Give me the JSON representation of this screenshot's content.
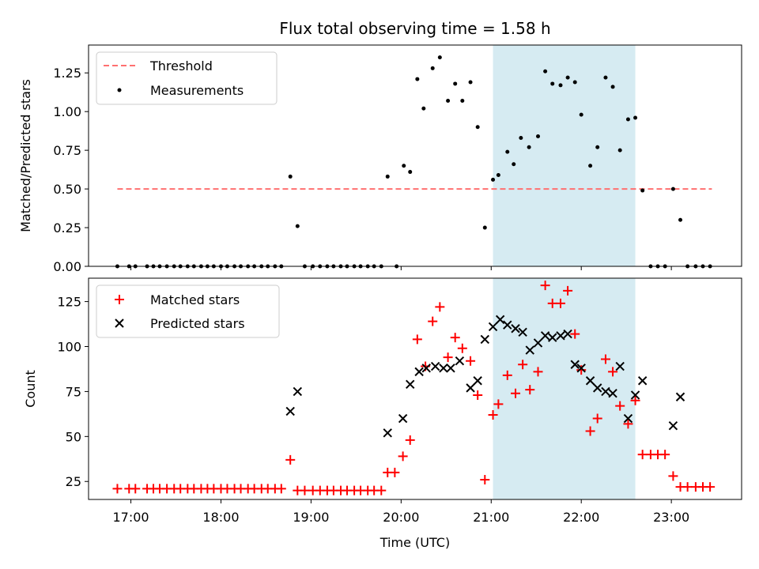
{
  "chart_data": [
    {
      "type": "scatter",
      "panel": "top",
      "title": "Flux total observing time = 1.58 h",
      "xlabel": "",
      "ylabel": "Matched/Predicted stars",
      "xlim": [
        16.53,
        23.78
      ],
      "ylim": [
        0.0,
        1.43
      ],
      "xticks": [
        17,
        18,
        19,
        20,
        21,
        22,
        23
      ],
      "yticks": [
        0.0,
        0.25,
        0.5,
        0.75,
        1.0,
        1.25
      ],
      "ytick_labels": [
        "0.00",
        "0.25",
        "0.50",
        "0.75",
        "1.00",
        "1.25"
      ],
      "shaded_span": [
        21.02,
        22.6
      ],
      "shaded_color": "#add8e6",
      "legend": {
        "position": "top-left",
        "entries": [
          {
            "label": "Threshold",
            "style": "dashed-line",
            "color": "#ff7070"
          },
          {
            "label": "Measurements",
            "style": "dot",
            "color": "#000000"
          }
        ]
      },
      "series": [
        {
          "name": "Threshold",
          "kind": "line",
          "color": "#ff7070",
          "x": [
            16.85,
            23.45
          ],
          "y": [
            0.5,
            0.5
          ]
        },
        {
          "name": "Measurements",
          "kind": "scatter",
          "color": "#000000",
          "x": [
            16.85,
            16.98,
            17.05,
            17.18,
            17.25,
            17.32,
            17.4,
            17.48,
            17.55,
            17.63,
            17.7,
            17.78,
            17.85,
            17.92,
            18.0,
            18.07,
            18.15,
            18.22,
            18.3,
            18.37,
            18.45,
            18.52,
            18.6,
            18.67,
            18.77,
            18.85,
            18.93,
            19.02,
            19.1,
            19.18,
            19.25,
            19.33,
            19.4,
            19.48,
            19.55,
            19.63,
            19.7,
            19.78,
            19.85,
            19.95,
            20.03,
            20.1,
            20.18,
            20.25,
            20.35,
            20.43,
            20.52,
            20.6,
            20.68,
            20.77,
            20.85,
            20.93,
            21.02,
            21.08,
            21.18,
            21.25,
            21.33,
            21.42,
            21.52,
            21.6,
            21.68,
            21.77,
            21.85,
            21.93,
            22.0,
            22.1,
            22.18,
            22.27,
            22.35,
            22.43,
            22.52,
            22.6,
            22.68,
            22.77,
            22.85,
            22.93,
            23.02,
            23.1,
            23.18,
            23.27,
            23.35,
            23.43
          ],
          "y": [
            0,
            0,
            0,
            0,
            0,
            0,
            0,
            0,
            0,
            0,
            0,
            0,
            0,
            0,
            0,
            0,
            0,
            0,
            0,
            0,
            0,
            0,
            0,
            0,
            0.58,
            0.26,
            0,
            0,
            0,
            0,
            0,
            0,
            0,
            0,
            0,
            0,
            0,
            0,
            0.58,
            0,
            0.65,
            0.61,
            1.21,
            1.02,
            1.28,
            1.35,
            1.07,
            1.18,
            1.07,
            1.19,
            0.9,
            0.25,
            0.56,
            0.59,
            0.74,
            0.66,
            0.83,
            0.77,
            0.84,
            1.26,
            1.18,
            1.17,
            1.22,
            1.19,
            0.98,
            0.65,
            0.77,
            1.22,
            1.16,
            0.75,
            0.95,
            0.96,
            0.49,
            0,
            0,
            0,
            0.5,
            0.3,
            0,
            0,
            0,
            0
          ]
        }
      ]
    },
    {
      "type": "scatter",
      "panel": "bottom",
      "title": "",
      "xlabel": "Time (UTC)",
      "ylabel": "Count",
      "xlim": [
        16.53,
        23.78
      ],
      "ylim": [
        15,
        138
      ],
      "xticks": [
        17,
        18,
        19,
        20,
        21,
        22,
        23
      ],
      "xtick_labels": [
        "17:00",
        "18:00",
        "19:00",
        "20:00",
        "21:00",
        "22:00",
        "23:00"
      ],
      "yticks": [
        25,
        50,
        75,
        100,
        125
      ],
      "ytick_labels": [
        "25",
        "50",
        "75",
        "100",
        "125"
      ],
      "shaded_span": [
        21.02,
        22.6
      ],
      "shaded_color": "#add8e6",
      "legend": {
        "position": "top-left",
        "entries": [
          {
            "label": "Matched stars",
            "style": "plus",
            "color": "#ff0000"
          },
          {
            "label": "Predicted stars",
            "style": "x",
            "color": "#000000"
          }
        ]
      },
      "series": [
        {
          "name": "Matched stars",
          "kind": "plus",
          "color": "#ff0000",
          "x": [
            16.85,
            16.98,
            17.05,
            17.18,
            17.25,
            17.32,
            17.4,
            17.48,
            17.55,
            17.63,
            17.7,
            17.78,
            17.85,
            17.92,
            18.0,
            18.07,
            18.15,
            18.22,
            18.3,
            18.37,
            18.45,
            18.52,
            18.6,
            18.67,
            18.77,
            18.85,
            18.93,
            19.02,
            19.1,
            19.18,
            19.25,
            19.33,
            19.4,
            19.48,
            19.55,
            19.63,
            19.7,
            19.78,
            19.85,
            19.93,
            20.02,
            20.1,
            20.18,
            20.27,
            20.35,
            20.43,
            20.52,
            20.6,
            20.68,
            20.77,
            20.85,
            20.93,
            21.02,
            21.08,
            21.18,
            21.27,
            21.35,
            21.43,
            21.52,
            21.6,
            21.68,
            21.77,
            21.85,
            21.93,
            22.0,
            22.1,
            22.18,
            22.27,
            22.35,
            22.43,
            22.52,
            22.6,
            22.68,
            22.77,
            22.85,
            22.93,
            23.02,
            23.1,
            23.18,
            23.27,
            23.35,
            23.43
          ],
          "y": [
            21,
            21,
            21,
            21,
            21,
            21,
            21,
            21,
            21,
            21,
            21,
            21,
            21,
            21,
            21,
            21,
            21,
            21,
            21,
            21,
            21,
            21,
            21,
            21,
            37,
            20,
            20,
            20,
            20,
            20,
            20,
            20,
            20,
            20,
            20,
            20,
            20,
            20,
            30,
            30,
            39,
            48,
            104,
            89,
            114,
            122,
            94,
            105,
            99,
            92,
            73,
            26,
            62,
            68,
            84,
            74,
            90,
            76,
            86,
            134,
            124,
            124,
            131,
            107,
            87,
            53,
            60,
            93,
            86,
            67,
            57,
            70,
            40,
            40,
            40,
            40,
            28,
            22,
            22,
            22,
            22,
            22
          ]
        },
        {
          "name": "Predicted stars",
          "kind": "x",
          "color": "#000000",
          "x": [
            18.77,
            18.85,
            19.85,
            20.02,
            20.1,
            20.2,
            20.28,
            20.38,
            20.47,
            20.55,
            20.65,
            20.77,
            20.85,
            20.93,
            21.02,
            21.1,
            21.18,
            21.27,
            21.35,
            21.43,
            21.52,
            21.6,
            21.68,
            21.77,
            21.85,
            21.93,
            22.0,
            22.1,
            22.18,
            22.27,
            22.35,
            22.43,
            22.52,
            22.6,
            22.68,
            23.02,
            23.1
          ],
          "y": [
            64,
            75,
            52,
            60,
            79,
            86,
            88,
            89,
            88,
            88,
            92,
            77,
            81,
            104,
            111,
            115,
            112,
            110,
            108,
            98,
            102,
            106,
            105,
            106,
            107,
            90,
            88,
            81,
            77,
            75,
            74,
            89,
            60,
            73,
            81,
            56,
            72
          ]
        }
      ]
    }
  ]
}
